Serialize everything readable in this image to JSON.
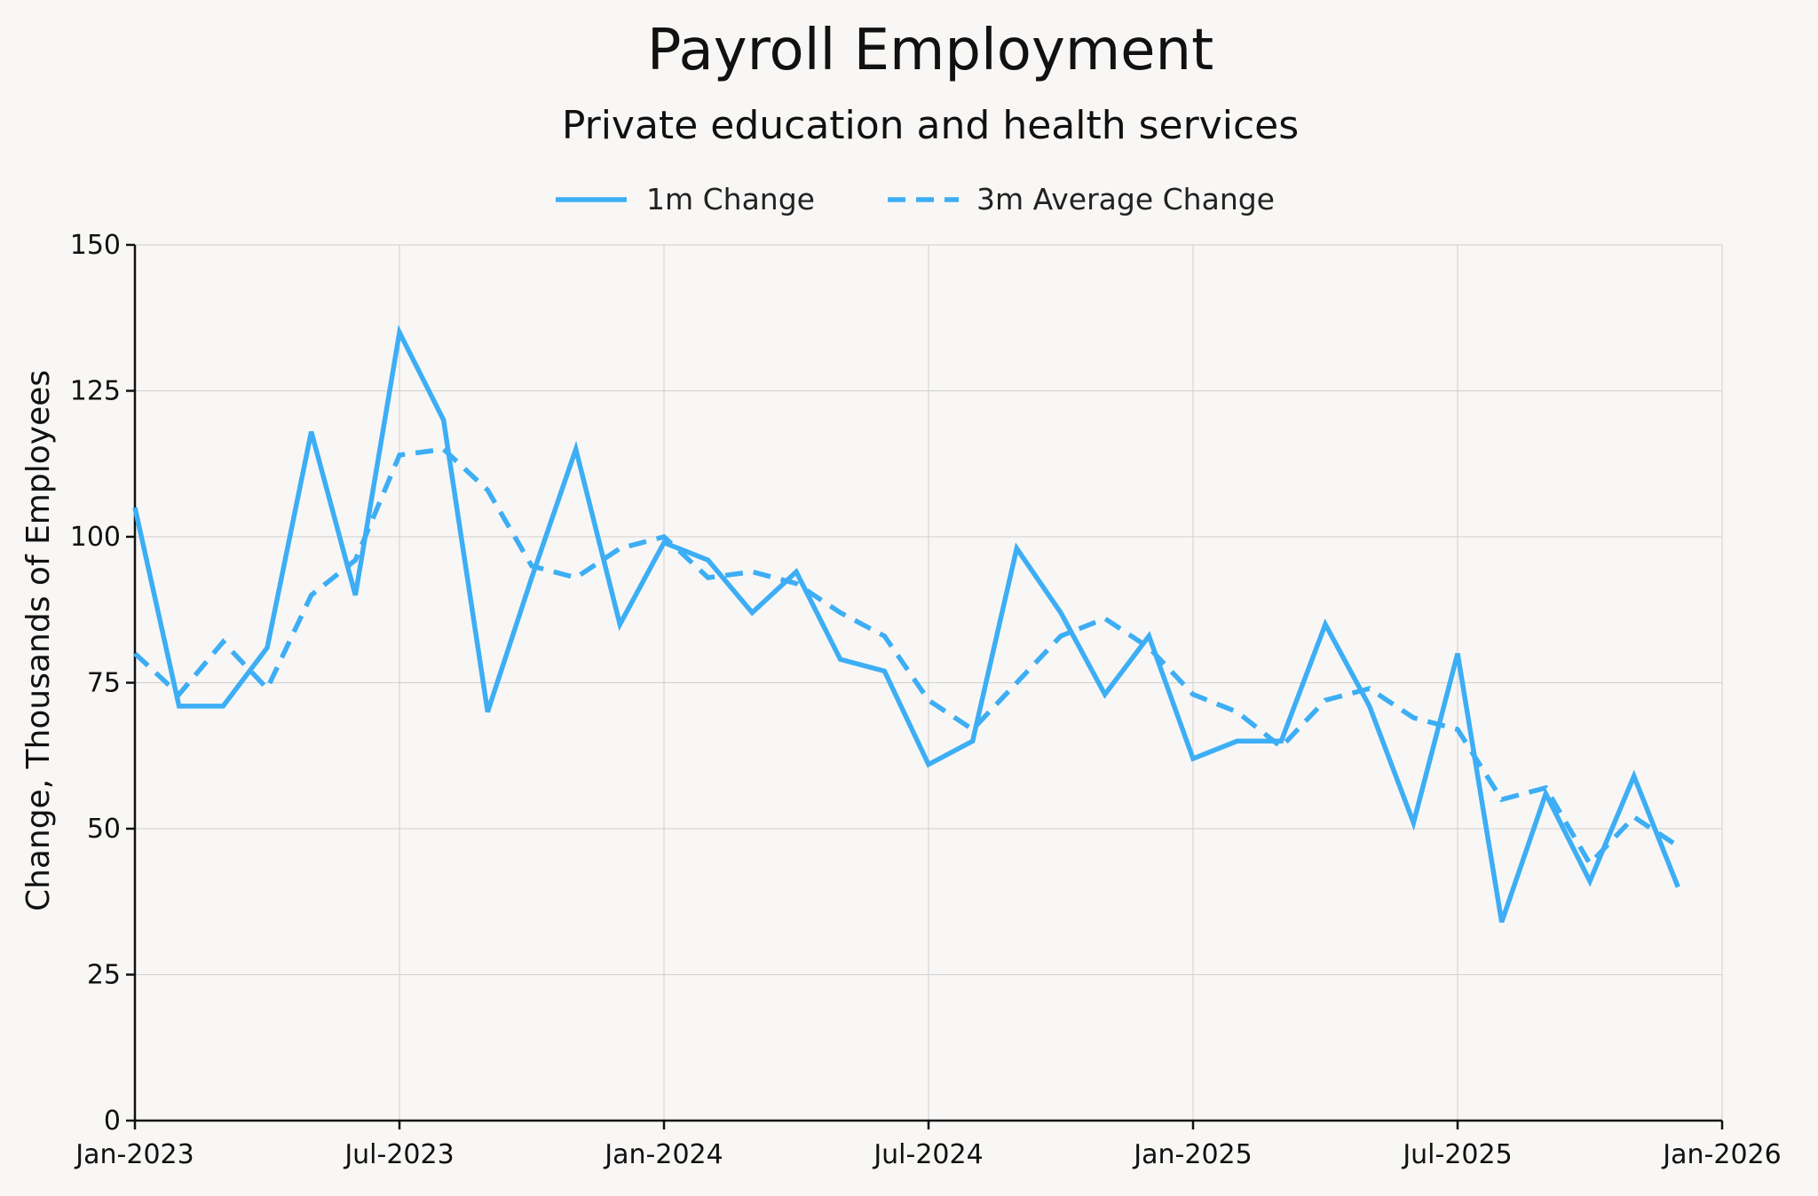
{
  "chart_data": {
    "type": "line",
    "title": "Payroll Employment",
    "subtitle": "Private education and health services",
    "xlabel": "",
    "ylabel": "Change, Thousands of Employees",
    "xlim": [
      "2023-01",
      "2026-01"
    ],
    "ylim": [
      0,
      150
    ],
    "y_ticks": [
      0,
      25,
      50,
      75,
      100,
      125,
      150
    ],
    "x_ticks": [
      "Jan-2023",
      "Jul-2023",
      "Jan-2024",
      "Jul-2024",
      "Jan-2025",
      "Jul-2025",
      "Jan-2026"
    ],
    "grid": true,
    "legend": "top-center",
    "color": "#3daef5",
    "x": [
      "2023-01",
      "2023-02",
      "2023-03",
      "2023-04",
      "2023-05",
      "2023-06",
      "2023-07",
      "2023-08",
      "2023-09",
      "2023-10",
      "2023-11",
      "2023-12",
      "2024-01",
      "2024-02",
      "2024-03",
      "2024-04",
      "2024-05",
      "2024-06",
      "2024-07",
      "2024-08",
      "2024-09",
      "2024-10",
      "2024-11",
      "2024-12",
      "2025-01",
      "2025-02",
      "2025-03",
      "2025-04",
      "2025-05",
      "2025-06",
      "2025-07",
      "2025-08",
      "2025-09",
      "2025-10",
      "2025-11",
      "2025-12"
    ],
    "series": [
      {
        "name": "1m Change",
        "style": "solid",
        "values": [
          105,
          71,
          71,
          81,
          118,
          90,
          135,
          120,
          70,
          93,
          115,
          85,
          99,
          96,
          87,
          94,
          79,
          77,
          61,
          65,
          98,
          87,
          73,
          83,
          62,
          65,
          65,
          85,
          71,
          51,
          80,
          34,
          56,
          41,
          59,
          40
        ]
      },
      {
        "name": "3m Average Change",
        "style": "dashed",
        "values": [
          80,
          73,
          82,
          74,
          90,
          96,
          114,
          115,
          108,
          95,
          93,
          98,
          100,
          93,
          94,
          92,
          87,
          83,
          72,
          67,
          75,
          83,
          86,
          81,
          73,
          70,
          64,
          72,
          74,
          69,
          67,
          55,
          57,
          44,
          52,
          47
        ]
      }
    ]
  }
}
